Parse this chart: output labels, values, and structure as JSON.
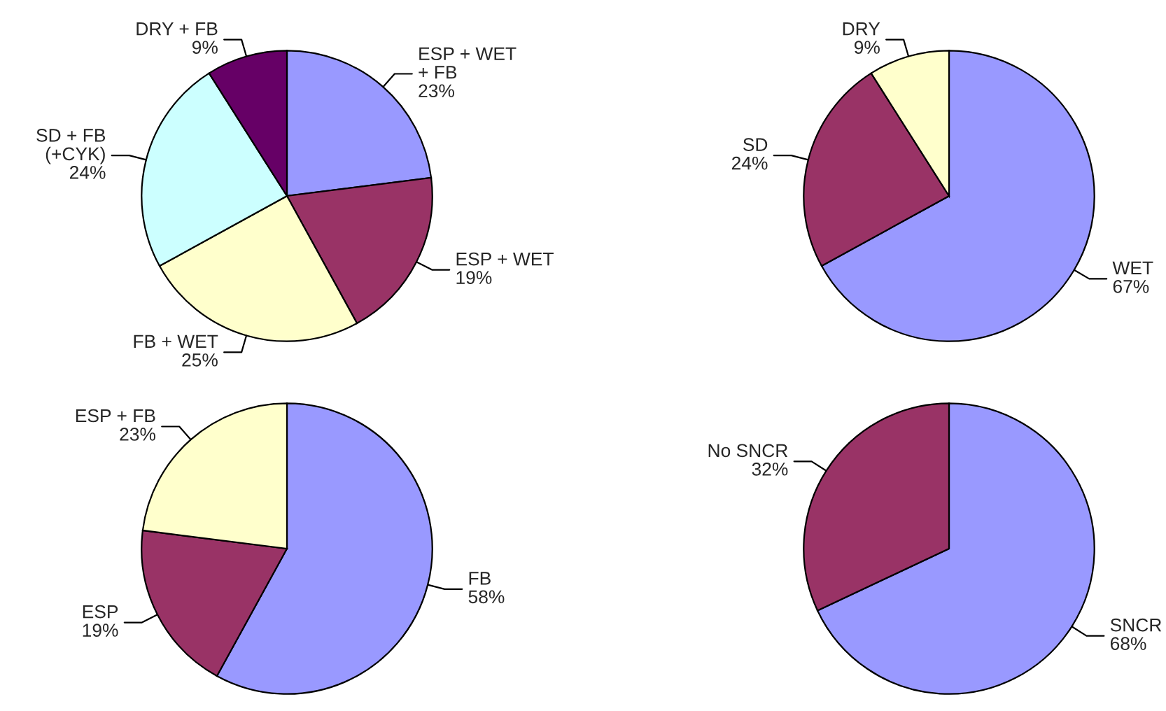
{
  "chart_data": [
    {
      "type": "pie",
      "categories": [
        "ESP + WET\n+ FB",
        "ESP + WET",
        "FB + WET",
        "SD + FB\n(+CYK)",
        "DRY + FB"
      ],
      "values": [
        23,
        19,
        25,
        24,
        9
      ],
      "value_labels": [
        "23%",
        "19%",
        "25%",
        "24%",
        "9%"
      ],
      "colors": [
        "#9999ff",
        "#993366",
        "#ffffcc",
        "#ccffff",
        "#660066"
      ]
    },
    {
      "type": "pie",
      "categories": [
        "WET",
        "SD",
        "DRY"
      ],
      "values": [
        67,
        24,
        9
      ],
      "value_labels": [
        "67%",
        "24%",
        "9%"
      ],
      "colors": [
        "#9999ff",
        "#993366",
        "#ffffcc"
      ]
    },
    {
      "type": "pie",
      "categories": [
        "FB",
        "ESP",
        "ESP + FB"
      ],
      "values": [
        58,
        19,
        23
      ],
      "value_labels": [
        "58%",
        "19%",
        "23%"
      ],
      "colors": [
        "#9999ff",
        "#993366",
        "#ffffcc"
      ]
    },
    {
      "type": "pie",
      "categories": [
        "SNCR",
        "No SNCR"
      ],
      "values": [
        68,
        32
      ],
      "value_labels": [
        "68%",
        "32%"
      ],
      "colors": [
        "#9999ff",
        "#993366"
      ]
    }
  ]
}
